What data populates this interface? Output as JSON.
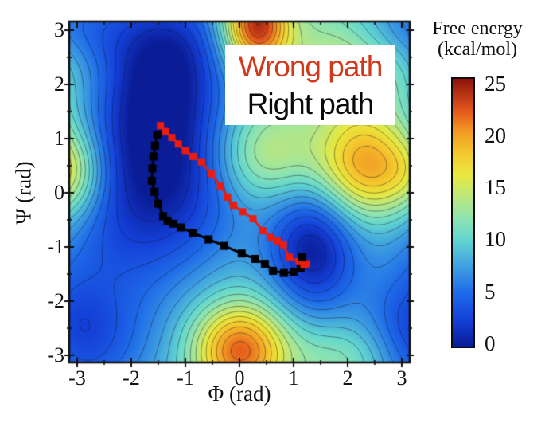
{
  "axes": {
    "x": {
      "label": "Φ (rad)",
      "ticks": [
        -3,
        -2,
        -1,
        0,
        1,
        2,
        3
      ],
      "minor_step": 0.5,
      "range": [
        -3.1416,
        3.1416
      ]
    },
    "y": {
      "label": "Ψ (rad)",
      "ticks": [
        -3,
        -2,
        -1,
        0,
        1,
        2,
        3
      ],
      "minor_step": 0.5,
      "range": [
        -3.1416,
        3.1416
      ]
    }
  },
  "colorbar": {
    "title_line1": "Free energy",
    "title_line2": "(kcal/mol)",
    "ticks": [
      0,
      5,
      10,
      15,
      20,
      25
    ],
    "min": 0,
    "max": 25
  },
  "legend": {
    "wrong_label": "Wrong path",
    "wrong_color": "#d0391b",
    "right_label": "Right path",
    "right_color": "#0a0a0a"
  },
  "chart_data": {
    "type": "heatmap",
    "title": "Free energy (kcal/mol)",
    "xlabel": "Φ (rad)",
    "ylabel": "Ψ (rad)",
    "x_range": [
      -3.1416,
      3.1416
    ],
    "y_range": [
      -3.1416,
      3.1416
    ],
    "z_range": [
      0,
      25
    ],
    "grid": false,
    "contour_interval": 1.25,
    "colormap_stops": [
      [
        0,
        "#0a1c96"
      ],
      [
        2.5,
        "#1440d8"
      ],
      [
        5,
        "#1e6ae8"
      ],
      [
        7.5,
        "#3fa0e0"
      ],
      [
        10,
        "#62d6d0"
      ],
      [
        12,
        "#8fe4b0"
      ],
      [
        14,
        "#bce77c"
      ],
      [
        16,
        "#e8e83e"
      ],
      [
        18,
        "#f4c92e"
      ],
      [
        20,
        "#f29c24"
      ],
      [
        22,
        "#e4581c"
      ],
      [
        25,
        "#8e120c"
      ]
    ],
    "surface_model": {
      "base": 10,
      "periodic_x": true,
      "clamp": [
        0,
        25
      ],
      "gaussians": [
        {
          "cx": -1.5,
          "cy": 1.7,
          "amp": -10,
          "sx": 0.9,
          "sy": 1.35
        },
        {
          "cx": -1.1,
          "cy": 2.8,
          "amp": -2.5,
          "sx": 0.8,
          "sy": 0.7
        },
        {
          "cx": -2.3,
          "cy": -0.7,
          "amp": -5,
          "sx": 1.0,
          "sy": 1.4
        },
        {
          "cx": -0.8,
          "cy": -0.3,
          "amp": -3.5,
          "sx": 0.9,
          "sy": 1.0
        },
        {
          "cx": 1.35,
          "cy": -1.05,
          "amp": -9.5,
          "sx": 0.6,
          "sy": 0.85
        },
        {
          "cx": -2.8,
          "cy": -2.9,
          "amp": -4,
          "sx": 1.0,
          "sy": 0.8
        },
        {
          "cx": 3.0,
          "cy": 3.05,
          "amp": -5,
          "sx": 0.8,
          "sy": 0.55
        },
        {
          "cx": 3.1,
          "cy": -2.6,
          "amp": -3,
          "sx": 0.6,
          "sy": 0.9
        },
        {
          "cx": 0.3,
          "cy": 3.1,
          "amp": 14.5,
          "sx": 0.42,
          "sy": 0.55
        },
        {
          "cx": 0.0,
          "cy": -2.9,
          "amp": 12,
          "sx": 0.6,
          "sy": 0.6
        },
        {
          "cx": 2.35,
          "cy": 0.5,
          "amp": 10.5,
          "sx": 0.65,
          "sy": 0.7
        },
        {
          "cx": 3.25,
          "cy": 0.35,
          "amp": 4.5,
          "sx": 0.42,
          "sy": 0.55
        },
        {
          "cx": 2.15,
          "cy": 2.5,
          "amp": 5,
          "sx": 0.95,
          "sy": 0.7
        },
        {
          "cx": 0.45,
          "cy": 0.7,
          "amp": 5,
          "sx": 0.65,
          "sy": 0.6
        },
        {
          "cx": 2.1,
          "cy": -3.05,
          "amp": 3.5,
          "sx": 0.8,
          "sy": 0.5
        }
      ]
    },
    "series": [
      {
        "name": "Wrong path",
        "color": "#ed1c0f",
        "marker": "square",
        "points": [
          [
            -1.46,
            1.24
          ],
          [
            -1.36,
            1.13
          ],
          [
            -1.25,
            1.02
          ],
          [
            -1.13,
            0.9
          ],
          [
            -1.0,
            0.78
          ],
          [
            -0.86,
            0.67
          ],
          [
            -0.7,
            0.57
          ],
          [
            -0.52,
            0.35
          ],
          [
            -0.35,
            0.12
          ],
          [
            -0.22,
            -0.08
          ],
          [
            -0.11,
            -0.23
          ],
          [
            0.06,
            -0.35
          ],
          [
            0.25,
            -0.48
          ],
          [
            0.43,
            -0.7
          ],
          [
            0.57,
            -0.82
          ],
          [
            0.7,
            -0.89
          ],
          [
            0.81,
            -0.96
          ],
          [
            0.92,
            -1.19
          ],
          [
            1.1,
            -1.27
          ],
          [
            1.19,
            -1.33
          ],
          [
            1.24,
            -1.31
          ]
        ]
      },
      {
        "name": "Right path",
        "color": "#000000",
        "marker": "square",
        "points": [
          [
            -1.52,
            1.07
          ],
          [
            -1.56,
            0.87
          ],
          [
            -1.59,
            0.67
          ],
          [
            -1.61,
            0.45
          ],
          [
            -1.62,
            0.22
          ],
          [
            -1.57,
            0.02
          ],
          [
            -1.5,
            -0.2
          ],
          [
            -1.41,
            -0.43
          ],
          [
            -1.33,
            -0.52
          ],
          [
            -1.22,
            -0.57
          ],
          [
            -1.08,
            -0.64
          ],
          [
            -0.86,
            -0.74
          ],
          [
            -0.57,
            -0.86
          ],
          [
            -0.28,
            -0.98
          ],
          [
            0.04,
            -1.12
          ],
          [
            0.29,
            -1.22
          ],
          [
            0.47,
            -1.31
          ],
          [
            0.62,
            -1.44
          ],
          [
            0.82,
            -1.48
          ],
          [
            1.0,
            -1.46
          ],
          [
            1.13,
            -1.39
          ],
          [
            1.16,
            -1.19
          ]
        ]
      }
    ]
  }
}
